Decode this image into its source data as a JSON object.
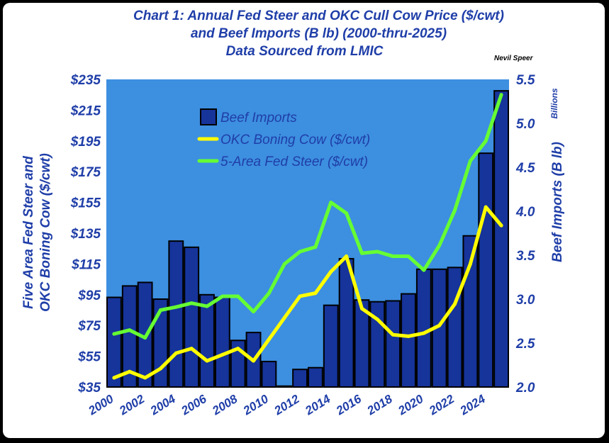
{
  "title_lines": [
    "Chart 1:   Annual Fed Steer and OKC Cull Cow Price ($/cwt)",
    "and Beef Imports (B lb) (2000-thru-2025)",
    "Data Sourced from LMIC"
  ],
  "author": "Nevil Speer",
  "colors": {
    "background": "#3d8fe0",
    "bar_fill": "#16349a",
    "bar_edge": "#000000",
    "okc_line": "#ffff00",
    "steer_line": "#66ff33",
    "text": "#1f3ea8"
  },
  "chart_data": {
    "type": "bar",
    "years": [
      2000,
      2001,
      2002,
      2003,
      2004,
      2005,
      2006,
      2007,
      2008,
      2009,
      2010,
      2011,
      2012,
      2013,
      2014,
      2015,
      2016,
      2017,
      2018,
      2019,
      2020,
      2021,
      2022,
      2023,
      2024,
      2025
    ],
    "x_tick_labels": [
      "2000",
      "2002",
      "2004",
      "2006",
      "2008",
      "2010",
      "2012",
      "2014",
      "2016",
      "2018",
      "2020",
      "2022",
      "2024"
    ],
    "left_axis": {
      "label": "Five Area Fed Steer and OKC Boning Cow ($/cwt)",
      "label_lines": [
        "Five Area Fed Steer and",
        "OKC Boning Cow ($/cwt)"
      ],
      "range": [
        35,
        235
      ],
      "ticks": [
        "$35",
        "$55",
        "$75",
        "$95",
        "$115",
        "$135",
        "$155",
        "$175",
        "$195",
        "$215",
        "$235"
      ]
    },
    "right_axis": {
      "label": "Beef Imports (B lb)",
      "unit": "Billions",
      "range": [
        2.0,
        5.5
      ],
      "ticks": [
        "2.0",
        "2.5",
        "3.0",
        "3.5",
        "4.0",
        "4.5",
        "5.0",
        "5.5"
      ]
    },
    "series": [
      {
        "name": "Beef Imports",
        "kind": "bar",
        "axis": "right",
        "values": [
          3.02,
          3.15,
          3.19,
          3.0,
          3.66,
          3.59,
          3.05,
          3.02,
          2.53,
          2.62,
          2.29,
          2.01,
          2.2,
          2.22,
          2.93,
          3.46,
          2.99,
          2.97,
          2.98,
          3.06,
          3.34,
          3.34,
          3.36,
          3.72,
          4.66,
          5.37
        ]
      },
      {
        "name": "OKC Boning Cow ($/cwt)",
        "kind": "line",
        "axis": "left",
        "values": [
          41,
          45,
          41,
          47,
          57,
          60,
          52,
          56,
          60,
          52,
          66,
          80,
          94,
          96,
          110,
          120,
          86,
          79,
          69,
          68,
          70,
          75,
          89,
          115,
          152,
          140
        ]
      },
      {
        "name": "5-Area Fed Steer ($/cwt)",
        "kind": "line",
        "axis": "left",
        "values": [
          69.5,
          72,
          67,
          85,
          87,
          89.5,
          87.5,
          94,
          94,
          84,
          96,
          115,
          123,
          126,
          155,
          148,
          122,
          123,
          120,
          120,
          111,
          127,
          150,
          182,
          195,
          225
        ]
      }
    ],
    "legend_position": "upper-left inside plot",
    "grid": false
  }
}
